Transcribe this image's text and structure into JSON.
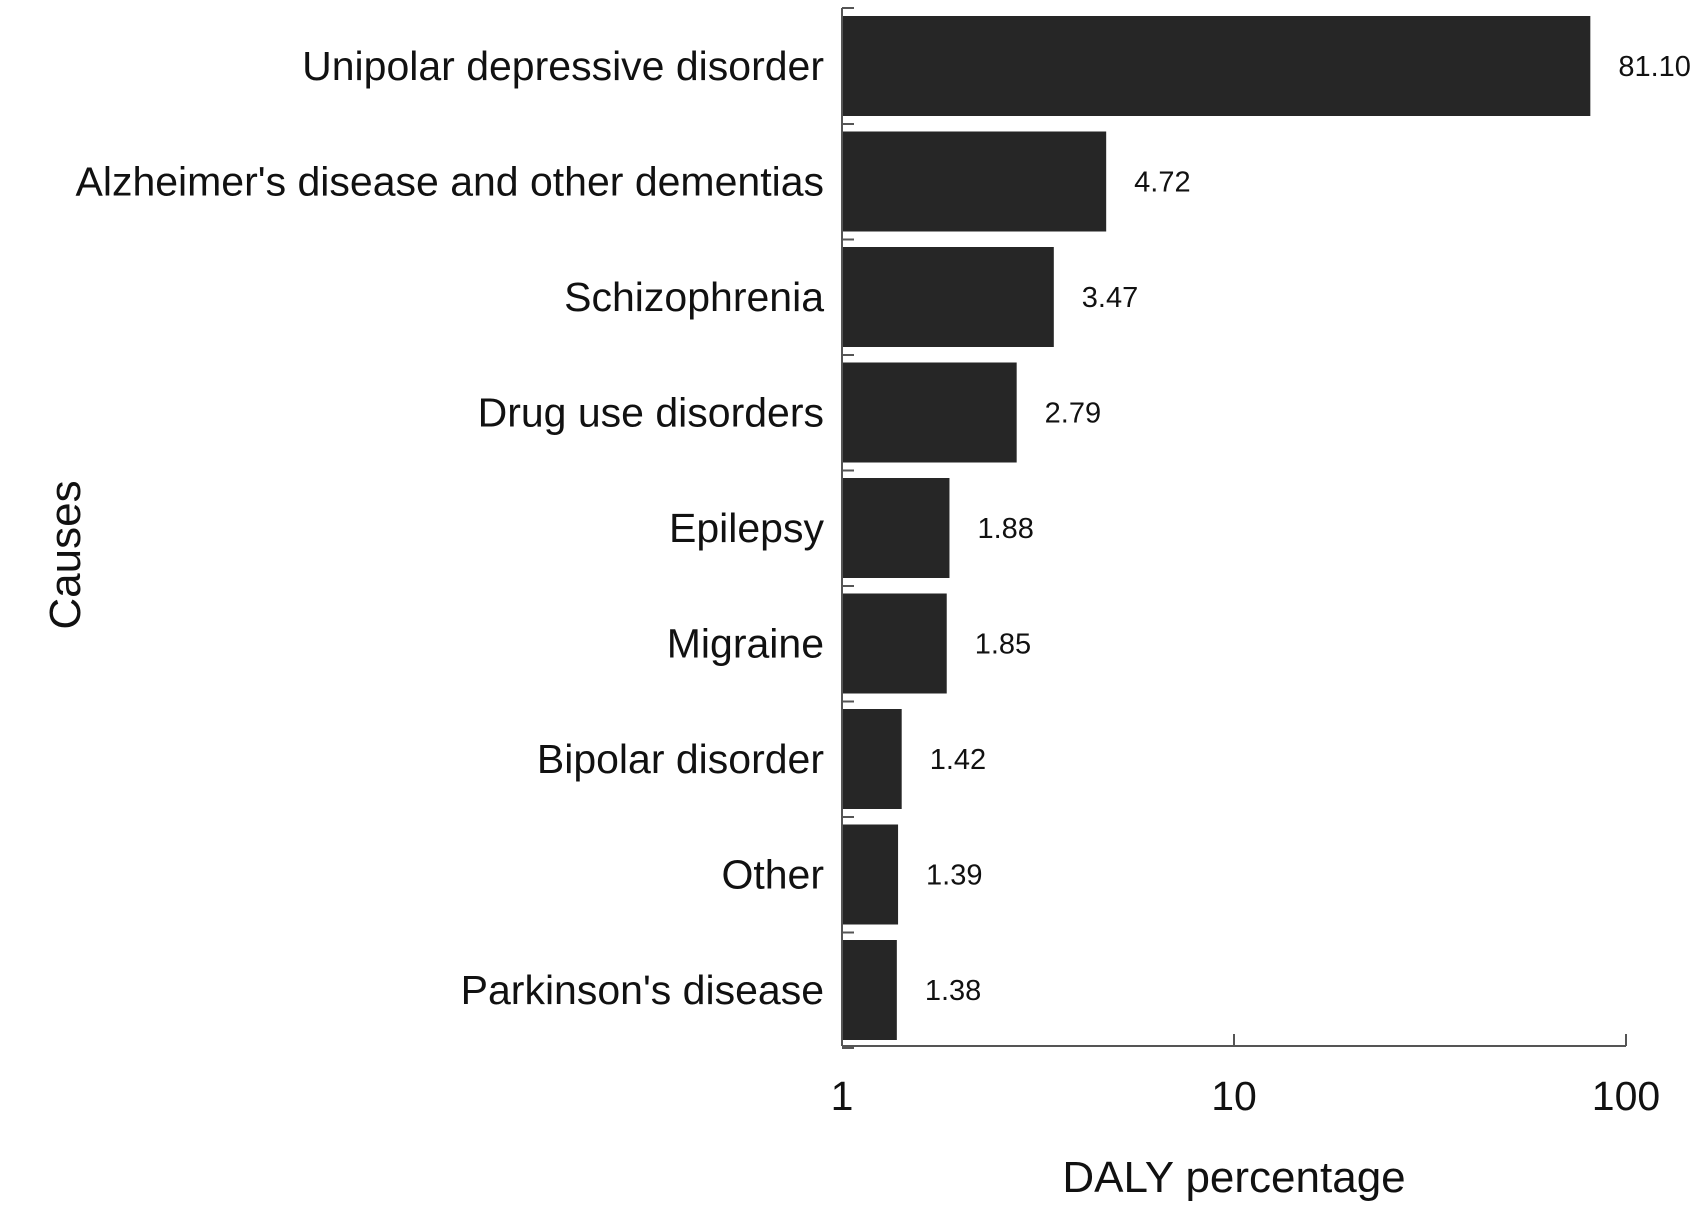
{
  "chart_data": {
    "type": "bar",
    "orientation": "horizontal",
    "x_scale": "log",
    "categories": [
      "Unipolar depressive disorder",
      "Alzheimer's disease and other dementias",
      "Schizophrenia",
      "Drug use disorders",
      "Epilepsy",
      "Migraine",
      "Bipolar disorder",
      "Other",
      "Parkinson's disease"
    ],
    "values": [
      81.1,
      4.72,
      3.47,
      2.79,
      1.88,
      1.85,
      1.42,
      1.39,
      1.38
    ],
    "value_labels": [
      "81.10",
      "4.72",
      "3.47",
      "2.79",
      "1.88",
      "1.85",
      "1.42",
      "1.39",
      "1.38"
    ],
    "xlabel": "DALY percentage",
    "ylabel": "Causes",
    "xlim": [
      1,
      100
    ],
    "x_ticks": [
      1,
      10,
      100
    ],
    "x_tick_labels": [
      "1",
      "10",
      "100"
    ],
    "bar_color": "#262626",
    "grid": false
  }
}
